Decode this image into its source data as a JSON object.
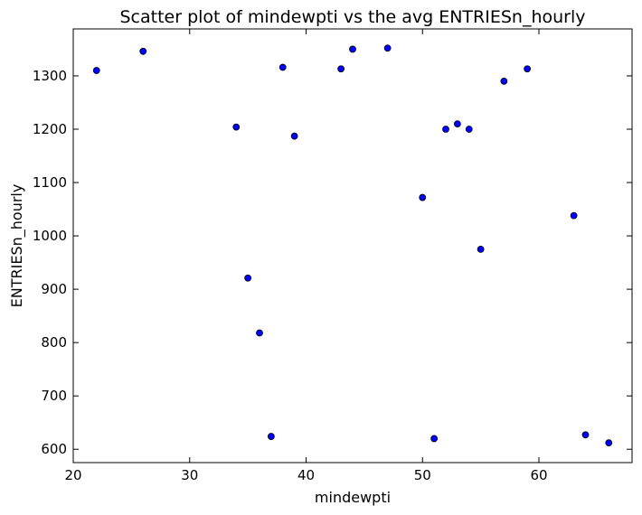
{
  "chart_data": {
    "type": "scatter",
    "title": "Scatter plot of mindewpti vs the avg ENTRIESn_hourly",
    "xlabel": "mindewpti",
    "ylabel": "ENTRIESn_hourly",
    "xlim": [
      20,
      68
    ],
    "ylim": [
      575,
      1388
    ],
    "xticks": [
      20,
      30,
      40,
      50,
      60
    ],
    "yticks": [
      600,
      700,
      800,
      900,
      1000,
      1100,
      1200,
      1300
    ],
    "grid": false,
    "marker_color": "#0000ff",
    "marker_edge": "#000000",
    "points": [
      {
        "x": 22,
        "y": 1310
      },
      {
        "x": 26,
        "y": 1346
      },
      {
        "x": 34,
        "y": 1204
      },
      {
        "x": 35,
        "y": 921
      },
      {
        "x": 36,
        "y": 818
      },
      {
        "x": 37,
        "y": 624
      },
      {
        "x": 38,
        "y": 1316
      },
      {
        "x": 39,
        "y": 1187
      },
      {
        "x": 43,
        "y": 1313
      },
      {
        "x": 44,
        "y": 1350
      },
      {
        "x": 47,
        "y": 1352
      },
      {
        "x": 50,
        "y": 1072
      },
      {
        "x": 51,
        "y": 620
      },
      {
        "x": 52,
        "y": 1200
      },
      {
        "x": 53,
        "y": 1210
      },
      {
        "x": 54,
        "y": 1200
      },
      {
        "x": 55,
        "y": 975
      },
      {
        "x": 57,
        "y": 1290
      },
      {
        "x": 59,
        "y": 1313
      },
      {
        "x": 63,
        "y": 1038
      },
      {
        "x": 64,
        "y": 627
      },
      {
        "x": 66,
        "y": 612
      }
    ]
  }
}
